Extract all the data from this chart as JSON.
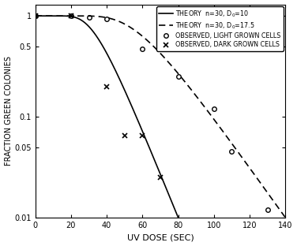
{
  "title": "",
  "xlabel": "UV DOSE (SEC)",
  "ylabel": "FRACTION GREEN COLONIES",
  "xlim": [
    0,
    140
  ],
  "ylim": [
    0.01,
    1.5
  ],
  "xticks": [
    0,
    20,
    40,
    60,
    80,
    100,
    120,
    140
  ],
  "yticks": [
    0.01,
    0.05,
    0.1,
    0.5,
    1.0
  ],
  "ytick_labels": [
    "0.01",
    "0.05",
    "0.1",
    "0.5",
    "1.0"
  ],
  "theory1_n": 30,
  "theory1_D0": 10,
  "theory2_n": 30,
  "theory2_D0": 17.5,
  "observed_light_x": [
    0,
    20,
    30,
    40,
    60,
    80,
    100,
    110,
    130
  ],
  "observed_light_y": [
    1.0,
    1.0,
    0.97,
    0.93,
    0.47,
    0.25,
    0.12,
    0.045,
    0.012
  ],
  "observed_dark_x": [
    0,
    20,
    40,
    50,
    60,
    70
  ],
  "observed_dark_y": [
    1.0,
    1.0,
    0.2,
    0.065,
    0.065,
    0.025
  ],
  "legend_labels": [
    "THEORY  n=30, D$_0$=10",
    "THEORY  n=30, D$_0$=17.5",
    "OBSERVED, LIGHT GROWN CELLS",
    "OBSERVED, DARK GROWN CELLS"
  ],
  "bg_color": "#f0f0f0",
  "line_color": "#000000"
}
